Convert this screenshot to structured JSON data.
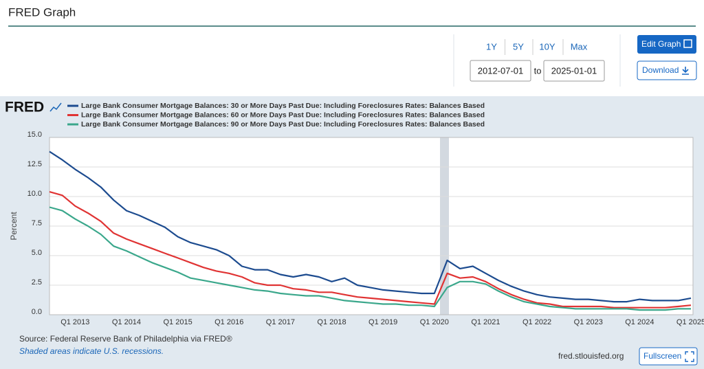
{
  "header": {
    "title": "FRED Graph"
  },
  "controls": {
    "ranges": [
      "1Y",
      "5Y",
      "10Y",
      "Max"
    ],
    "start_date": "2012-07-01",
    "to": "to",
    "end_date": "2025-01-01",
    "edit": "Edit Graph",
    "download": "Download",
    "fullscreen": "Fullscreen"
  },
  "footer": {
    "source": "Source: Federal Reserve Bank of Philadelphia via FRED®",
    "note": "Shaded areas indicate U.S. recessions.",
    "site": "fred.stlouisfed.org"
  },
  "chart_data": {
    "type": "line",
    "logo": "FRED",
    "ylabel": "Percent",
    "categories": [
      null,
      null,
      "Q1 2013",
      null,
      null,
      null,
      "Q1 2014",
      null,
      null,
      null,
      "Q1 2015",
      null,
      null,
      null,
      "Q1 2016",
      null,
      null,
      null,
      "Q1 2017",
      null,
      null,
      null,
      "Q1 2018",
      null,
      null,
      null,
      "Q1 2019",
      null,
      null,
      null,
      "Q1 2020",
      null,
      null,
      null,
      "Q1 2021",
      null,
      null,
      null,
      "Q1 2022",
      null,
      null,
      null,
      "Q1 2023",
      null,
      null,
      null,
      "Q1 2024",
      null,
      null,
      null,
      "Q1 2025"
    ],
    "series": [
      {
        "name": "Large Bank Consumer Mortgage Balances: 30 or More Days Past Due: Including Foreclosures Rates: Balances Based",
        "color": "#1c4b8f",
        "values": [
          13.8,
          13.1,
          12.3,
          11.6,
          10.8,
          9.7,
          8.8,
          8.4,
          7.9,
          7.4,
          6.6,
          6.1,
          5.8,
          5.5,
          5.0,
          4.1,
          3.8,
          3.8,
          3.4,
          3.2,
          3.4,
          3.2,
          2.8,
          3.1,
          2.5,
          2.3,
          2.1,
          2.0,
          1.9,
          1.8,
          1.8,
          4.6,
          3.9,
          4.1,
          3.5,
          2.9,
          2.4,
          2.0,
          1.7,
          1.5,
          1.4,
          1.3,
          1.3,
          1.2,
          1.1,
          1.1,
          1.3,
          1.2,
          1.2,
          1.2,
          1.4
        ]
      },
      {
        "name": "Large Bank Consumer Mortgage Balances: 60 or More Days Past Due: Including Foreclosures Rates: Balances Based",
        "color": "#e03333",
        "values": [
          10.4,
          10.1,
          9.2,
          8.6,
          7.9,
          6.9,
          6.4,
          6.0,
          5.6,
          5.2,
          4.8,
          4.4,
          4.0,
          3.7,
          3.5,
          3.2,
          2.7,
          2.5,
          2.5,
          2.2,
          2.1,
          1.9,
          1.9,
          1.7,
          1.5,
          1.4,
          1.3,
          1.2,
          1.1,
          1.0,
          0.9,
          3.5,
          3.1,
          3.2,
          2.8,
          2.2,
          1.7,
          1.3,
          1.0,
          0.9,
          0.7,
          0.7,
          0.7,
          0.7,
          0.6,
          0.6,
          0.6,
          0.6,
          0.6,
          0.7,
          0.8
        ]
      },
      {
        "name": "Large Bank Consumer Mortgage Balances: 90 or More Days Past Due: Including Foreclosures Rates: Balances Based",
        "color": "#3aa78b",
        "values": [
          9.1,
          8.8,
          8.1,
          7.5,
          6.8,
          5.8,
          5.4,
          4.9,
          4.4,
          4.0,
          3.6,
          3.1,
          2.9,
          2.7,
          2.5,
          2.3,
          2.1,
          2.0,
          1.8,
          1.7,
          1.6,
          1.6,
          1.4,
          1.2,
          1.1,
          1.0,
          0.9,
          0.9,
          0.8,
          0.8,
          0.7,
          2.3,
          2.8,
          2.8,
          2.6,
          2.0,
          1.5,
          1.1,
          0.9,
          0.7,
          0.6,
          0.5,
          0.5,
          0.5,
          0.5,
          0.5,
          0.4,
          0.4,
          0.4,
          0.5,
          0.5
        ]
      }
    ],
    "ylim": [
      0,
      15
    ],
    "yticks": [
      {
        "value": 0,
        "label": "0.0"
      },
      2.5,
      {
        "value": 5,
        "label": "5.0"
      },
      7.5,
      {
        "value": 10,
        "label": "10.0"
      },
      12.5,
      {
        "value": 15,
        "label": "15.0"
      }
    ],
    "grid": true
  }
}
